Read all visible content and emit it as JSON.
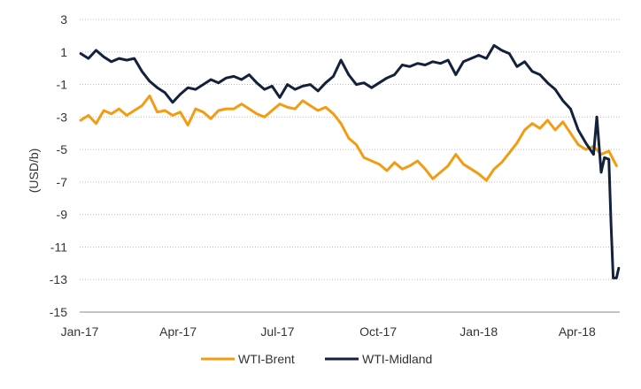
{
  "chart_data": {
    "type": "line",
    "title": "",
    "xlabel": "",
    "ylabel": "(USD/b)",
    "ylim": [
      -15,
      3
    ],
    "yticks": [
      3,
      1,
      -1,
      -3,
      -5,
      -7,
      -9,
      -11,
      -13,
      -15
    ],
    "ytick_labels": [
      "3",
      "1",
      "-1",
      "-3",
      "-5",
      "-7",
      "-9",
      "-11",
      "-13",
      "-15"
    ],
    "xlim": [
      "2017-01-01",
      "2018-05-10"
    ],
    "xticks": [
      "2017-01-01",
      "2017-04-01",
      "2017-07-01",
      "2017-10-01",
      "2018-01-01",
      "2018-04-01"
    ],
    "xtick_labels": [
      "Jan-17",
      "Apr-17",
      "Jul-17",
      "Oct-17",
      "Jan-18",
      "Apr-18"
    ],
    "grid": "horizontal, dotted",
    "legend_position": "bottom",
    "series": [
      {
        "name": "WTI-Brent",
        "color": "#f39c12",
        "points": [
          [
            "2017-01-02",
            -3.2
          ],
          [
            "2017-01-09",
            -2.9
          ],
          [
            "2017-01-16",
            -3.4
          ],
          [
            "2017-01-23",
            -2.6
          ],
          [
            "2017-01-30",
            -2.8
          ],
          [
            "2017-02-06",
            -2.5
          ],
          [
            "2017-02-13",
            -2.9
          ],
          [
            "2017-02-20",
            -2.6
          ],
          [
            "2017-02-27",
            -2.3
          ],
          [
            "2017-03-06",
            -1.7
          ],
          [
            "2017-03-13",
            -2.7
          ],
          [
            "2017-03-20",
            -2.6
          ],
          [
            "2017-03-27",
            -2.9
          ],
          [
            "2017-04-03",
            -2.7
          ],
          [
            "2017-04-10",
            -3.5
          ],
          [
            "2017-04-17",
            -2.5
          ],
          [
            "2017-04-24",
            -2.7
          ],
          [
            "2017-05-01",
            -3.1
          ],
          [
            "2017-05-08",
            -2.6
          ],
          [
            "2017-05-15",
            -2.5
          ],
          [
            "2017-05-22",
            -2.5
          ],
          [
            "2017-05-29",
            -2.2
          ],
          [
            "2017-06-05",
            -2.5
          ],
          [
            "2017-06-12",
            -2.8
          ],
          [
            "2017-06-19",
            -3.0
          ],
          [
            "2017-06-26",
            -2.6
          ],
          [
            "2017-07-03",
            -2.2
          ],
          [
            "2017-07-10",
            -2.4
          ],
          [
            "2017-07-17",
            -2.5
          ],
          [
            "2017-07-24",
            -2.0
          ],
          [
            "2017-07-31",
            -2.3
          ],
          [
            "2017-08-07",
            -2.6
          ],
          [
            "2017-08-14",
            -2.4
          ],
          [
            "2017-08-21",
            -2.8
          ],
          [
            "2017-08-28",
            -3.4
          ],
          [
            "2017-09-04",
            -4.3
          ],
          [
            "2017-09-11",
            -4.7
          ],
          [
            "2017-09-18",
            -5.5
          ],
          [
            "2017-09-25",
            -5.7
          ],
          [
            "2017-10-02",
            -5.9
          ],
          [
            "2017-10-09",
            -6.3
          ],
          [
            "2017-10-16",
            -5.8
          ],
          [
            "2017-10-23",
            -6.2
          ],
          [
            "2017-10-30",
            -6.0
          ],
          [
            "2017-11-06",
            -5.7
          ],
          [
            "2017-11-13",
            -6.2
          ],
          [
            "2017-11-20",
            -6.8
          ],
          [
            "2017-11-27",
            -6.4
          ],
          [
            "2017-12-04",
            -6.0
          ],
          [
            "2017-12-11",
            -5.3
          ],
          [
            "2017-12-18",
            -5.9
          ],
          [
            "2017-12-25",
            -6.2
          ],
          [
            "2018-01-01",
            -6.5
          ],
          [
            "2018-01-08",
            -6.9
          ],
          [
            "2018-01-15",
            -6.2
          ],
          [
            "2018-01-22",
            -5.8
          ],
          [
            "2018-01-29",
            -5.2
          ],
          [
            "2018-02-05",
            -4.6
          ],
          [
            "2018-02-12",
            -3.8
          ],
          [
            "2018-02-19",
            -3.4
          ],
          [
            "2018-02-26",
            -3.7
          ],
          [
            "2018-03-05",
            -3.2
          ],
          [
            "2018-03-12",
            -3.8
          ],
          [
            "2018-03-19",
            -3.3
          ],
          [
            "2018-03-26",
            -4.0
          ],
          [
            "2018-04-02",
            -4.7
          ],
          [
            "2018-04-09",
            -5.0
          ],
          [
            "2018-04-16",
            -4.8
          ],
          [
            "2018-04-23",
            -5.3
          ],
          [
            "2018-04-30",
            -5.1
          ],
          [
            "2018-05-07",
            -6.0
          ]
        ]
      },
      {
        "name": "WTI-Midland",
        "color": "#14213d",
        "points": [
          [
            "2017-01-02",
            0.9
          ],
          [
            "2017-01-09",
            0.6
          ],
          [
            "2017-01-16",
            1.1
          ],
          [
            "2017-01-23",
            0.7
          ],
          [
            "2017-01-30",
            0.4
          ],
          [
            "2017-02-06",
            0.6
          ],
          [
            "2017-02-13",
            0.5
          ],
          [
            "2017-02-20",
            0.6
          ],
          [
            "2017-02-27",
            -0.2
          ],
          [
            "2017-03-06",
            -0.8
          ],
          [
            "2017-03-13",
            -1.2
          ],
          [
            "2017-03-20",
            -1.5
          ],
          [
            "2017-03-27",
            -2.1
          ],
          [
            "2017-04-03",
            -1.6
          ],
          [
            "2017-04-10",
            -1.2
          ],
          [
            "2017-04-17",
            -1.3
          ],
          [
            "2017-04-24",
            -1.0
          ],
          [
            "2017-05-01",
            -0.7
          ],
          [
            "2017-05-08",
            -0.9
          ],
          [
            "2017-05-15",
            -0.6
          ],
          [
            "2017-05-22",
            -0.5
          ],
          [
            "2017-05-29",
            -0.7
          ],
          [
            "2017-06-05",
            -0.4
          ],
          [
            "2017-06-12",
            -0.9
          ],
          [
            "2017-06-19",
            -1.3
          ],
          [
            "2017-06-26",
            -1.1
          ],
          [
            "2017-07-03",
            -1.8
          ],
          [
            "2017-07-10",
            -1.0
          ],
          [
            "2017-07-17",
            -1.3
          ],
          [
            "2017-07-24",
            -1.1
          ],
          [
            "2017-07-31",
            -1.0
          ],
          [
            "2017-08-07",
            -1.4
          ],
          [
            "2017-08-14",
            -0.9
          ],
          [
            "2017-08-21",
            -0.5
          ],
          [
            "2017-08-28",
            0.5
          ],
          [
            "2017-09-04",
            -0.4
          ],
          [
            "2017-09-11",
            -1.0
          ],
          [
            "2017-09-18",
            -0.9
          ],
          [
            "2017-09-25",
            -1.2
          ],
          [
            "2017-10-02",
            -0.9
          ],
          [
            "2017-10-09",
            -0.6
          ],
          [
            "2017-10-16",
            -0.4
          ],
          [
            "2017-10-23",
            0.2
          ],
          [
            "2017-10-30",
            0.1
          ],
          [
            "2017-11-06",
            0.3
          ],
          [
            "2017-11-13",
            0.2
          ],
          [
            "2017-11-20",
            0.4
          ],
          [
            "2017-11-27",
            0.3
          ],
          [
            "2017-12-04",
            0.5
          ],
          [
            "2017-12-11",
            -0.4
          ],
          [
            "2017-12-18",
            0.4
          ],
          [
            "2017-12-25",
            0.6
          ],
          [
            "2018-01-01",
            0.8
          ],
          [
            "2018-01-08",
            0.6
          ],
          [
            "2018-01-15",
            1.4
          ],
          [
            "2018-01-22",
            1.1
          ],
          [
            "2018-01-29",
            0.9
          ],
          [
            "2018-02-05",
            0.1
          ],
          [
            "2018-02-12",
            0.4
          ],
          [
            "2018-02-19",
            -0.2
          ],
          [
            "2018-02-26",
            -0.4
          ],
          [
            "2018-03-05",
            -0.9
          ],
          [
            "2018-03-12",
            -1.3
          ],
          [
            "2018-03-19",
            -2.0
          ],
          [
            "2018-03-26",
            -2.5
          ],
          [
            "2018-04-02",
            -3.8
          ],
          [
            "2018-04-09",
            -4.6
          ],
          [
            "2018-04-16",
            -5.3
          ],
          [
            "2018-04-19",
            -3.0
          ],
          [
            "2018-04-23",
            -6.4
          ],
          [
            "2018-04-26",
            -5.5
          ],
          [
            "2018-04-30",
            -5.6
          ],
          [
            "2018-05-02",
            -9.5
          ],
          [
            "2018-05-04",
            -12.9
          ],
          [
            "2018-05-07",
            -12.9
          ],
          [
            "2018-05-09",
            -12.3
          ]
        ]
      }
    ]
  }
}
